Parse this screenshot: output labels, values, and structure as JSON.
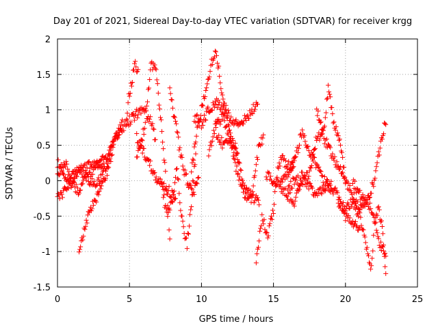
{
  "chart_data": {
    "type": "scatter",
    "title": "Day 201 of 2021, Sidereal Day-to-day VTEC variation (SDTVAR) for receiver krgg",
    "xlabel": "GPS time / hours",
    "ylabel": "SDTVAR / TECUs",
    "xlim": [
      0,
      25
    ],
    "ylim": [
      -1.5,
      2
    ],
    "xticks": [
      0,
      5,
      10,
      15,
      20,
      25
    ],
    "xtick_labels": [
      "0",
      "5",
      "10",
      "15",
      "20",
      "25"
    ],
    "yticks": [
      -1.5,
      -1,
      -0.5,
      0,
      0.5,
      1,
      1.5,
      2
    ],
    "ytick_labels": [
      "-1.5",
      "-1",
      "-0.5",
      "0",
      "0.5",
      "1",
      "1.5",
      "2"
    ],
    "grid": true,
    "marker": "+",
    "point_spacing_hours": 0.05,
    "colors": {
      "points": "#ff0000",
      "axes": "#000000",
      "grid": "#a0a0a0",
      "background": "#ffffff"
    },
    "series": [
      {
        "name": "track-a",
        "x_start": 0,
        "x_end": 6.8,
        "anchors": [
          [
            0,
            0.1
          ],
          [
            0.5,
            0.25
          ],
          [
            1,
            0.05
          ],
          [
            1.5,
            0.15
          ],
          [
            2,
            0.2
          ],
          [
            2.5,
            0.25
          ],
          [
            3,
            0.3
          ],
          [
            3.5,
            0.35
          ],
          [
            4,
            0.6
          ],
          [
            4.5,
            0.75
          ],
          [
            5,
            0.85
          ],
          [
            5.5,
            0.95
          ],
          [
            6,
            1.0
          ],
          [
            6.5,
            0.85
          ],
          [
            6.8,
            0.6
          ]
        ]
      },
      {
        "name": "track-b",
        "x_start": 0,
        "x_end": 3.8,
        "anchors": [
          [
            0,
            -0.25
          ],
          [
            0.5,
            -0.15
          ],
          [
            1,
            0.0
          ],
          [
            1.5,
            0.15
          ],
          [
            2,
            0.05
          ],
          [
            2.5,
            -0.05
          ],
          [
            3,
            0.05
          ],
          [
            3.5,
            0.25
          ],
          [
            3.8,
            0.6
          ]
        ]
      },
      {
        "name": "track-c",
        "x_start": 0,
        "x_end": 3.2,
        "anchors": [
          [
            0,
            0.25
          ],
          [
            0.5,
            0.05
          ],
          [
            1,
            -0.05
          ],
          [
            1.5,
            -0.15
          ],
          [
            2,
            0.05
          ],
          [
            2.5,
            0.15
          ],
          [
            3,
            0.25
          ],
          [
            3.2,
            0.2
          ]
        ]
      },
      {
        "name": "track-d",
        "x_start": 1.5,
        "x_end": 4.5,
        "anchors": [
          [
            1.5,
            -0.95
          ],
          [
            1.8,
            -0.75
          ],
          [
            2.2,
            -0.45
          ],
          [
            2.6,
            -0.3
          ],
          [
            3.0,
            -0.1
          ],
          [
            3.5,
            0.15
          ],
          [
            4.0,
            0.6
          ],
          [
            4.5,
            0.8
          ]
        ]
      },
      {
        "name": "track-e",
        "x_start": 4.8,
        "x_end": 5.6,
        "anchors": [
          [
            4.8,
            0.9
          ],
          [
            5.0,
            1.25
          ],
          [
            5.2,
            1.45
          ],
          [
            5.35,
            1.72
          ],
          [
            5.6,
            1.5
          ]
        ]
      },
      {
        "name": "track-f",
        "x_start": 5.5,
        "x_end": 7.8,
        "anchors": [
          [
            5.5,
            0.3
          ],
          [
            6.0,
            0.7
          ],
          [
            6.5,
            1.6
          ],
          [
            6.8,
            1.65
          ],
          [
            7.0,
            1.2
          ],
          [
            7.3,
            0.6
          ],
          [
            7.6,
            -0.2
          ],
          [
            7.8,
            -0.8
          ]
        ]
      },
      {
        "name": "track-g",
        "x_start": 5.5,
        "x_end": 8.2,
        "anchors": [
          [
            5.5,
            0.6
          ],
          [
            6.0,
            0.4
          ],
          [
            6.5,
            0.2
          ],
          [
            7.0,
            0.0
          ],
          [
            7.5,
            -0.1
          ],
          [
            8.0,
            -0.2
          ],
          [
            8.2,
            -0.3
          ]
        ]
      },
      {
        "name": "track-h",
        "x_start": 7.2,
        "x_end": 9.6,
        "anchors": [
          [
            7.2,
            0.0
          ],
          [
            7.6,
            -0.5
          ],
          [
            8.0,
            -0.3
          ],
          [
            8.3,
            0.2
          ],
          [
            8.6,
            -0.5
          ],
          [
            9.0,
            -0.9
          ],
          [
            9.3,
            -0.3
          ],
          [
            9.6,
            0.4
          ]
        ]
      },
      {
        "name": "track-i",
        "x_start": 7.8,
        "x_end": 9.8,
        "anchors": [
          [
            7.8,
            1.25
          ],
          [
            8.2,
            0.8
          ],
          [
            8.6,
            0.3
          ],
          [
            9.0,
            0.0
          ],
          [
            9.4,
            -0.2
          ],
          [
            9.8,
            0.0
          ]
        ]
      },
      {
        "name": "track-j",
        "x_start": 9.3,
        "x_end": 12.5,
        "anchors": [
          [
            9.3,
            0.1
          ],
          [
            9.6,
            0.6
          ],
          [
            10.0,
            1.0
          ],
          [
            10.4,
            1.4
          ],
          [
            10.8,
            1.75
          ],
          [
            11.0,
            1.85
          ],
          [
            11.3,
            1.4
          ],
          [
            11.7,
            1.0
          ],
          [
            12.1,
            0.6
          ],
          [
            12.5,
            0.4
          ]
        ]
      },
      {
        "name": "track-k",
        "x_start": 9.5,
        "x_end": 13.9,
        "anchors": [
          [
            9.5,
            0.9
          ],
          [
            10.0,
            0.8
          ],
          [
            10.5,
            1.0
          ],
          [
            11.0,
            1.1
          ],
          [
            11.5,
            1.0
          ],
          [
            12.0,
            0.9
          ],
          [
            12.5,
            0.8
          ],
          [
            13.0,
            0.85
          ],
          [
            13.5,
            1.0
          ],
          [
            13.9,
            1.05
          ]
        ]
      },
      {
        "name": "track-l",
        "x_start": 11.0,
        "x_end": 14.3,
        "anchors": [
          [
            11.0,
            0.7
          ],
          [
            11.5,
            0.5
          ],
          [
            12.0,
            0.6
          ],
          [
            12.5,
            0.3
          ],
          [
            13.0,
            -0.1
          ],
          [
            13.5,
            -0.2
          ],
          [
            14.0,
            0.5
          ],
          [
            14.3,
            0.6
          ]
        ]
      },
      {
        "name": "track-m",
        "x_start": 10.5,
        "x_end": 14.0,
        "anchors": [
          [
            10.5,
            0.4
          ],
          [
            11.0,
            0.8
          ],
          [
            11.5,
            0.9
          ],
          [
            12.0,
            0.6
          ],
          [
            12.5,
            0.1
          ],
          [
            13.0,
            -0.2
          ],
          [
            13.5,
            -0.25
          ],
          [
            14.0,
            -0.3
          ]
        ]
      },
      {
        "name": "track-n",
        "x_start": 13.8,
        "x_end": 16.5,
        "anchors": [
          [
            13.8,
            -1.1
          ],
          [
            14.2,
            -0.5
          ],
          [
            14.6,
            -0.8
          ],
          [
            15.0,
            -0.4
          ],
          [
            15.3,
            0.2
          ],
          [
            15.6,
            0.3
          ],
          [
            16.0,
            0.2
          ],
          [
            16.5,
            0.3
          ]
        ]
      },
      {
        "name": "track-o",
        "x_start": 14.5,
        "x_end": 19.0,
        "anchors": [
          [
            14.5,
            0.1
          ],
          [
            15.0,
            0.0
          ],
          [
            15.5,
            -0.1
          ],
          [
            16.0,
            -0.2
          ],
          [
            16.5,
            -0.3
          ],
          [
            17.0,
            0.1
          ],
          [
            17.5,
            -0.1
          ],
          [
            18.0,
            -0.2
          ],
          [
            18.5,
            -0.1
          ],
          [
            19.0,
            0.0
          ]
        ]
      },
      {
        "name": "track-p",
        "x_start": 15.5,
        "x_end": 21.0,
        "anchors": [
          [
            15.5,
            0.0
          ],
          [
            16.0,
            0.1
          ],
          [
            16.5,
            0.3
          ],
          [
            17.0,
            0.7
          ],
          [
            17.5,
            0.4
          ],
          [
            18.0,
            0.2
          ],
          [
            18.5,
            0.0
          ],
          [
            19.0,
            -0.1
          ],
          [
            19.5,
            -0.2
          ],
          [
            20.0,
            -0.5
          ],
          [
            20.5,
            -0.6
          ],
          [
            21.0,
            -0.7
          ]
        ]
      },
      {
        "name": "track-q",
        "x_start": 16.0,
        "x_end": 20.0,
        "anchors": [
          [
            16.0,
            -0.1
          ],
          [
            16.5,
            0.0
          ],
          [
            17.0,
            0.0
          ],
          [
            17.5,
            0.1
          ],
          [
            18.0,
            0.6
          ],
          [
            18.5,
            0.7
          ],
          [
            18.8,
            1.3
          ],
          [
            19.2,
            0.8
          ],
          [
            19.6,
            0.6
          ],
          [
            20.0,
            0.0
          ]
        ]
      },
      {
        "name": "track-r",
        "x_start": 18.0,
        "x_end": 22.8,
        "anchors": [
          [
            18.0,
            1.0
          ],
          [
            18.5,
            0.6
          ],
          [
            19.0,
            0.4
          ],
          [
            19.5,
            0.2
          ],
          [
            20.0,
            0.0
          ],
          [
            20.5,
            -0.2
          ],
          [
            21.0,
            -0.4
          ],
          [
            21.5,
            -0.3
          ],
          [
            22.0,
            0.0
          ],
          [
            22.5,
            0.6
          ],
          [
            22.8,
            0.85
          ]
        ]
      },
      {
        "name": "track-s",
        "x_start": 19.5,
        "x_end": 22.8,
        "anchors": [
          [
            19.5,
            -0.3
          ],
          [
            20.0,
            -0.4
          ],
          [
            20.5,
            -0.3
          ],
          [
            21.0,
            -0.5
          ],
          [
            21.5,
            -1.0
          ],
          [
            21.8,
            -1.25
          ],
          [
            22.0,
            -0.6
          ],
          [
            22.3,
            -0.4
          ],
          [
            22.6,
            -0.7
          ],
          [
            22.8,
            -1.3
          ]
        ]
      },
      {
        "name": "track-t",
        "x_start": 20.5,
        "x_end": 22.8,
        "anchors": [
          [
            20.5,
            0.0
          ],
          [
            21.0,
            -0.2
          ],
          [
            21.5,
            -0.3
          ],
          [
            22.0,
            -0.5
          ],
          [
            22.4,
            -0.9
          ],
          [
            22.8,
            -1.1
          ]
        ]
      }
    ]
  }
}
